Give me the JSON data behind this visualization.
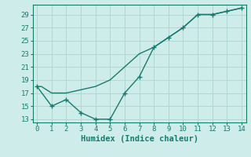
{
  "line1_x": [
    0,
    0.3,
    1,
    2,
    3,
    4,
    5,
    6,
    7,
    8,
    9,
    10,
    11,
    12,
    13,
    14
  ],
  "line1_y": [
    18,
    18,
    17,
    17,
    17.5,
    18,
    19,
    21,
    23,
    24,
    25.5,
    27,
    29,
    29,
    29.5,
    30
  ],
  "line2_x": [
    0,
    1,
    2,
    3,
    4,
    5,
    6,
    7,
    8,
    9,
    10,
    11,
    12,
    13,
    14
  ],
  "line2_y": [
    18,
    15,
    16,
    14,
    13,
    13,
    17,
    19.5,
    24,
    25.5,
    27,
    29,
    29,
    29.5,
    30
  ],
  "line_color": "#1a7a6e",
  "bg_color": "#cdecea",
  "grid_color": "#afd8d3",
  "xlabel": "Humidex (Indice chaleur)",
  "xlim": [
    -0.3,
    14.3
  ],
  "ylim": [
    12.5,
    30.5
  ],
  "xticks": [
    0,
    1,
    2,
    3,
    4,
    5,
    6,
    7,
    8,
    9,
    10,
    11,
    12,
    13,
    14
  ],
  "yticks": [
    13,
    15,
    17,
    19,
    21,
    23,
    25,
    27,
    29
  ],
  "tick_fontsize": 6.5,
  "xlabel_fontsize": 7.5,
  "marker": "+",
  "markersize": 4,
  "linewidth": 1.0
}
